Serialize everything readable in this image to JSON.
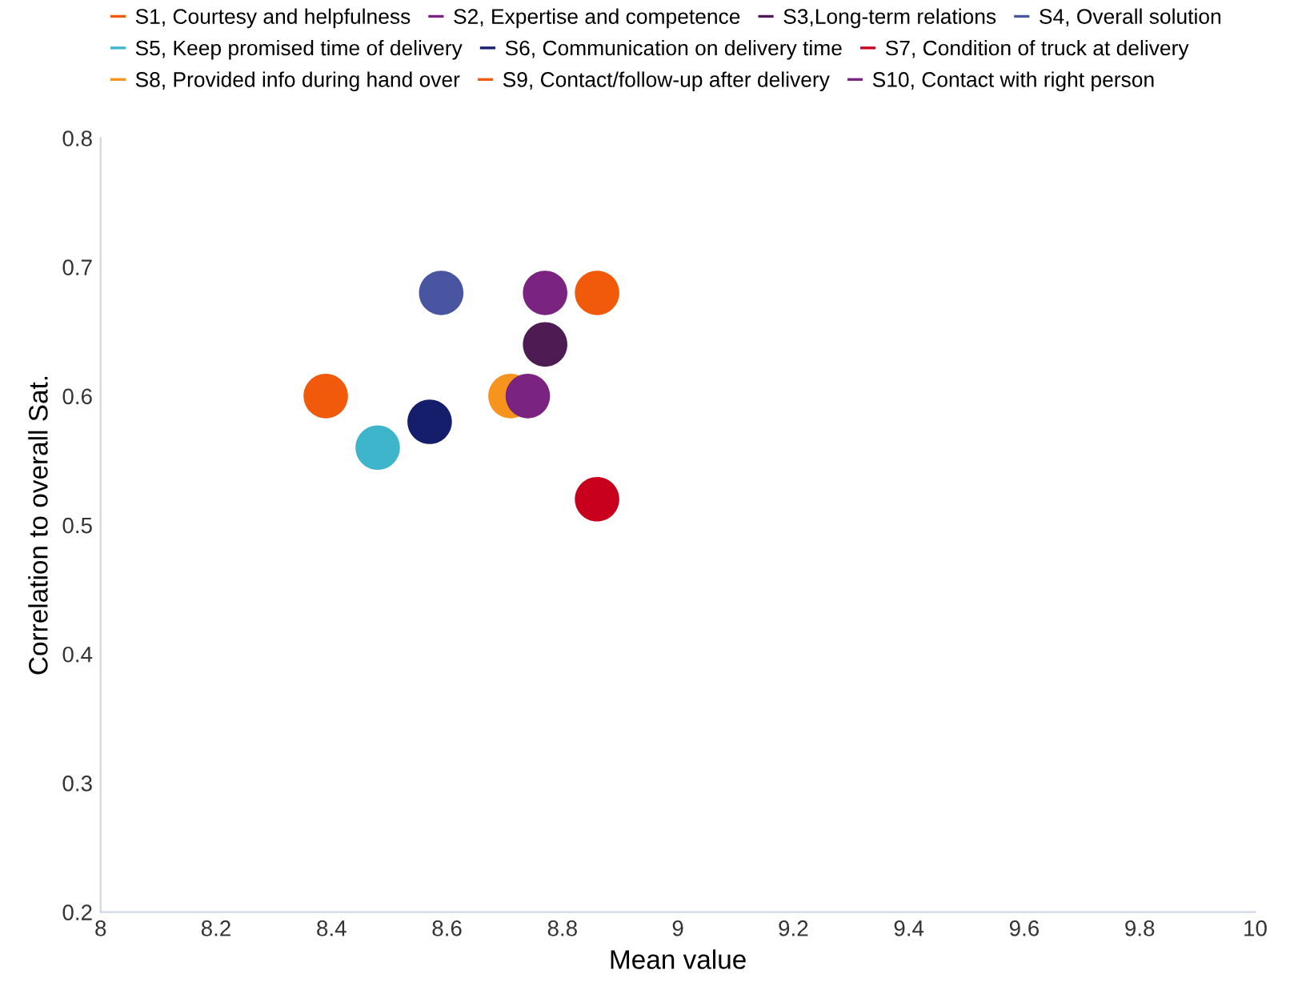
{
  "chart_data": {
    "type": "scatter",
    "xlabel": "Mean value",
    "ylabel": "Correlation to overall Sat.",
    "xlim": [
      8,
      10
    ],
    "xticks": [
      8,
      8.2,
      8.4,
      8.6,
      8.8,
      9,
      9.2,
      9.4,
      9.6,
      9.8,
      10
    ],
    "ylim": [
      0.2,
      0.8
    ],
    "yticks": [
      0.2,
      0.3,
      0.4,
      0.5,
      0.6,
      0.7,
      0.8
    ],
    "grid": false,
    "legend": "top",
    "marker": "circle",
    "series": [
      {
        "name": "S1, Courtesy and helpfulness",
        "color": "#f05a0a",
        "x": [
          8.39
        ],
        "values": [
          0.6
        ]
      },
      {
        "name": "S2, Expertise and competence",
        "color": "#7b2380",
        "x": [
          8.77
        ],
        "values": [
          0.68
        ]
      },
      {
        "name": "S3,Long-term relations",
        "color": "#4e1c52",
        "x": [
          8.77
        ],
        "values": [
          0.64
        ]
      },
      {
        "name": "S4, Overall solution",
        "color": "#4a55a2",
        "x": [
          8.59
        ],
        "values": [
          0.68
        ]
      },
      {
        "name": "S5, Keep promised time of delivery",
        "color": "#3fb5cc",
        "x": [
          8.48
        ],
        "values": [
          0.56
        ]
      },
      {
        "name": "S6, Communication on delivery time",
        "color": "#141e6a",
        "x": [
          8.57
        ],
        "values": [
          0.58
        ]
      },
      {
        "name": "S7, Condition of truck at delivery",
        "color": "#c8001e",
        "x": [
          8.86
        ],
        "values": [
          0.52
        ]
      },
      {
        "name": "S8, Provided info during hand over",
        "color": "#f7941d",
        "x": [
          8.71
        ],
        "values": [
          0.6
        ]
      },
      {
        "name": "S9, Contact/follow-up after delivery",
        "color": "#f05a0a",
        "x": [
          8.86
        ],
        "values": [
          0.68
        ]
      },
      {
        "name": "S10, Contact with right person",
        "color": "#7b2380",
        "x": [
          8.74
        ],
        "values": [
          0.6
        ]
      }
    ]
  }
}
